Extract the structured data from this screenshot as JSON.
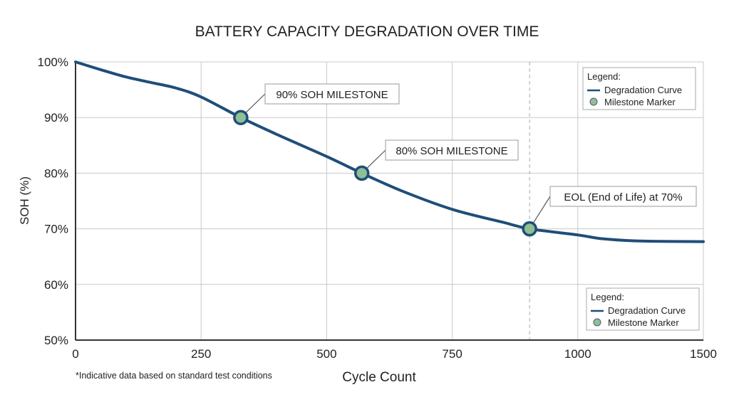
{
  "chart_data": {
    "type": "line",
    "title": "BATTERY CAPACITY DEGRADATION OVER TIME",
    "xlabel": "Cycle Count",
    "ylabel": "SOH (%)",
    "x_ticks": [
      0,
      250,
      500,
      750,
      1000,
      1500
    ],
    "x_tick_labels": [
      "0",
      "250",
      "500",
      "750",
      "1000",
      "1500"
    ],
    "y_ticks": [
      50,
      60,
      70,
      80,
      90,
      100
    ],
    "y_tick_labels": [
      "50%",
      "60%",
      "70%",
      "80%",
      "90%",
      "100%"
    ],
    "xlim": [
      0,
      1500
    ],
    "ylim": [
      50,
      100
    ],
    "grid": true,
    "colors": {
      "curve": "#1f4e79",
      "marker_fill": "#8fbf94",
      "marker_edge": "#1f4e79",
      "grid": "#c8c8c8"
    },
    "series": [
      {
        "name": "Degradation Curve",
        "x": [
          0,
          50,
          100,
          150,
          200,
          250,
          329,
          400,
          500,
          570,
          650,
          750,
          850,
          904,
          1000,
          1100,
          1250,
          1500
        ],
        "y": [
          100,
          98.6,
          97.3,
          96.3,
          95.3,
          93.7,
          90,
          87,
          83,
          80,
          76.8,
          73.5,
          71.2,
          70,
          68.9,
          68.2,
          67.8,
          67.7
        ]
      }
    ],
    "milestones": [
      {
        "x": 329,
        "y": 90,
        "label": "90% SOH MILESTONE"
      },
      {
        "x": 570,
        "y": 80,
        "label": "80% SOH MILESTONE"
      },
      {
        "x": 904,
        "y": 70,
        "label": "EOL (End of Life) at 70%"
      }
    ],
    "eol_line_x": 904,
    "legends": [
      {
        "title": "Legend:",
        "items": [
          "Degradation Curve",
          "Milestone Marker"
        ],
        "placement": "top-right"
      },
      {
        "title": "Legend:",
        "items": [
          "Degradation Curve",
          "Milestone Marker"
        ],
        "placement": "bottom-right"
      }
    ],
    "footnote": "*Indicative data based on standard test conditions"
  }
}
